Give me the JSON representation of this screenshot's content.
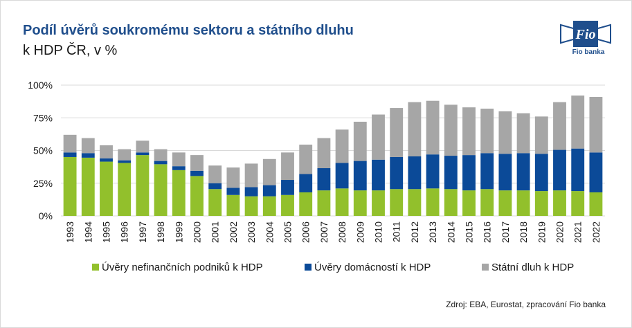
{
  "header": {
    "title": "Podíl úvěrů soukromému sektoru a státního dluhu",
    "subtitle": "k HDP ČR, v %"
  },
  "logo": {
    "text": "Fio banka",
    "mark": "Fio"
  },
  "source": "Zdroj: EBA, Eurostat, zpracování Fio banka",
  "colors": {
    "firms": "#92c02c",
    "households": "#0b4a98",
    "debt": "#a6a6a6"
  },
  "chart_data": {
    "type": "bar",
    "stacked": true,
    "title": "Podíl úvěrů soukromému sektoru a státního dluhu",
    "subtitle": "k HDP ČR, v %",
    "categories": [
      "1993",
      "1994",
      "1995",
      "1996",
      "1997",
      "1998",
      "1999",
      "2000",
      "2001",
      "2002",
      "2003",
      "2004",
      "2005",
      "2006",
      "2007",
      "2008",
      "2009",
      "2010",
      "2011",
      "2012",
      "2013",
      "2014",
      "2015",
      "2016",
      "2017",
      "2018",
      "2019",
      "2020",
      "2021",
      "2022"
    ],
    "series": [
      {
        "name": "Úvěry nefinančních podniků k HDP",
        "color": "#92c02c",
        "values": [
          45,
          44.5,
          41.5,
          40.5,
          46.5,
          39.5,
          35,
          30.5,
          20.5,
          16,
          15,
          15,
          16,
          18,
          19.5,
          21,
          19.5,
          19.5,
          20.5,
          20.5,
          21,
          20.5,
          19.5,
          20.5,
          19.5,
          19.5,
          19,
          19.5,
          19,
          18
        ]
      },
      {
        "name": "Úvěry domácností k HDP",
        "color": "#0b4a98",
        "values": [
          3.5,
          3.5,
          2.5,
          2,
          2,
          2.5,
          3,
          4,
          4.5,
          5.5,
          7,
          8.5,
          11.5,
          14,
          17,
          19.5,
          22.5,
          23.5,
          24.5,
          25,
          26,
          25.5,
          27,
          27.5,
          28,
          28.5,
          28.5,
          31,
          32.5,
          30.5
        ]
      },
      {
        "name": "Státní dluh k HDP",
        "color": "#a6a6a6",
        "values": [
          13.5,
          11.5,
          10,
          8.5,
          9,
          9,
          10.5,
          12,
          13.5,
          15.5,
          18,
          20,
          21,
          22.5,
          23,
          25.5,
          30,
          34.5,
          37.5,
          41.5,
          41,
          39,
          36.5,
          34,
          32.5,
          30.5,
          28.5,
          36.5,
          40.5,
          42.5
        ]
      }
    ],
    "ylim": [
      0,
      100
    ],
    "yticks": [
      0,
      25,
      50,
      75,
      100
    ],
    "ytick_labels": [
      "0%",
      "25%",
      "50%",
      "75%",
      "100%"
    ],
    "xlabel": "",
    "ylabel": "",
    "grid": true,
    "legend": "bottom"
  }
}
